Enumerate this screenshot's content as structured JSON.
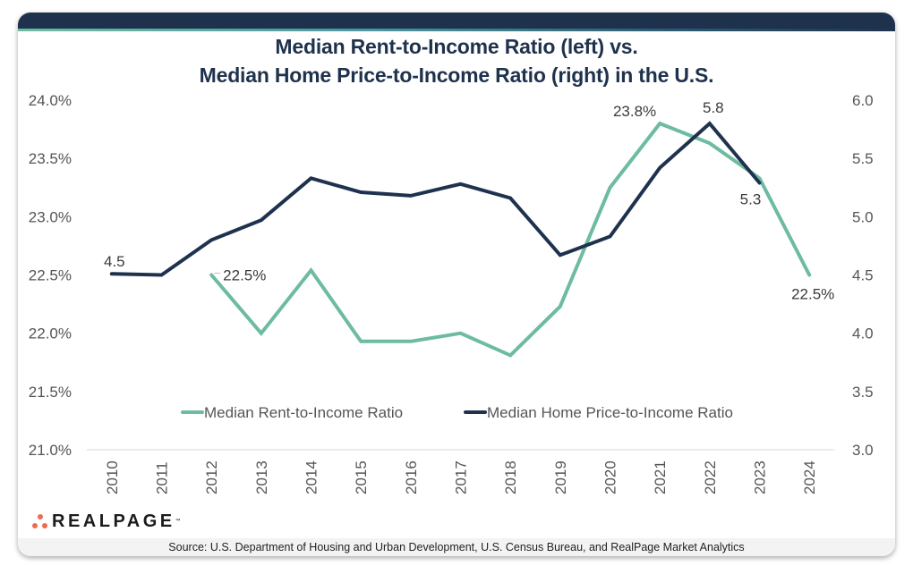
{
  "title_line1": "Median Rent-to-Income Ratio (left) vs.",
  "title_line2": "Median Home Price-to-Income Ratio (right) in the U.S.",
  "logo": {
    "icon": "realpage-dots-icon",
    "text": "REALPAGE",
    "tm": "™"
  },
  "source": "Source: U.S. Department of Housing and Urban Development, U.S. Census Bureau, and RealPage Market Analytics",
  "colors": {
    "rent": "#6dbba0",
    "home": "#1f324d",
    "brand_dark": "#1f324d",
    "logo_dots": "#ee6b4d"
  },
  "chart_data": {
    "type": "line",
    "title": "Median Rent-to-Income Ratio (left) vs. Median Home Price-to-Income Ratio (right) in the U.S.",
    "x": [
      "2010",
      "2011",
      "2012",
      "2013",
      "2014",
      "2015",
      "2016",
      "2017",
      "2018",
      "2019",
      "2020",
      "2021",
      "2022",
      "2023",
      "2024"
    ],
    "xlabel": "",
    "y_left": {
      "label": "",
      "range": [
        21.0,
        24.0
      ],
      "ticks": [
        "24.0%",
        "23.5%",
        "23.0%",
        "22.5%",
        "22.0%",
        "21.5%",
        "21.0%"
      ],
      "tick_values": [
        24.0,
        23.5,
        23.0,
        22.5,
        22.0,
        21.5,
        21.0
      ]
    },
    "y_right": {
      "label": "",
      "range": [
        3.0,
        6.0
      ],
      "ticks": [
        "6.0",
        "5.5",
        "5.0",
        "4.5",
        "4.0",
        "3.5",
        "3.0"
      ],
      "tick_values": [
        6.0,
        5.5,
        5.0,
        4.5,
        4.0,
        3.5,
        3.0
      ]
    },
    "grid": false,
    "legend": {
      "placement": "center-bottom-inside"
    },
    "series": [
      {
        "name": "Median Rent-to-Income Ratio",
        "axis": "left",
        "unit": "%",
        "values": [
          null,
          null,
          22.5,
          22.0,
          22.54,
          21.93,
          21.93,
          22.0,
          21.81,
          22.23,
          23.25,
          23.8,
          23.63,
          23.33,
          22.5
        ],
        "labels": [
          {
            "index": 2,
            "text": "22.5%"
          },
          {
            "index": 11,
            "text": "23.8%"
          },
          {
            "index": 14,
            "text": "22.5%"
          }
        ]
      },
      {
        "name": "Median Home Price-to-Income Ratio",
        "axis": "right",
        "unit": "",
        "values": [
          4.51,
          4.5,
          4.8,
          4.97,
          5.33,
          5.21,
          5.18,
          5.28,
          5.16,
          4.67,
          4.83,
          5.42,
          5.8,
          5.29,
          null
        ],
        "labels": [
          {
            "index": 0,
            "text": "4.5"
          },
          {
            "index": 12,
            "text": "5.8"
          },
          {
            "index": 13,
            "text": "5.3"
          }
        ]
      }
    ]
  }
}
